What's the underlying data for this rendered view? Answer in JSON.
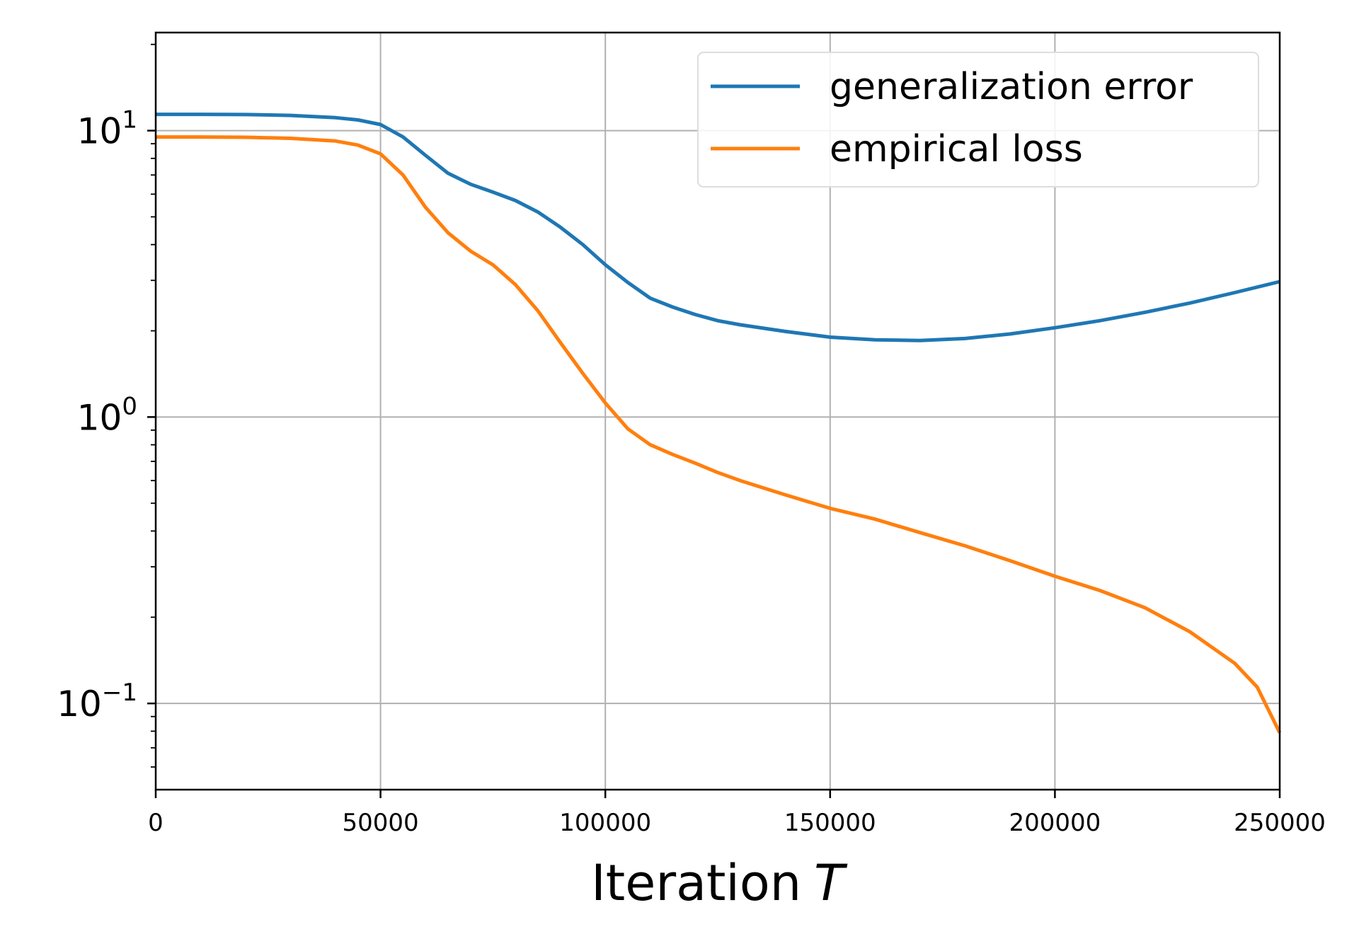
{
  "chart_data": {
    "type": "line",
    "xlabel": "Iteration",
    "xlabel_symbol": "T",
    "ylabel": "",
    "title": "",
    "y_scale": "log",
    "xlim": [
      0,
      250000
    ],
    "ylim": [
      0.05,
      22
    ],
    "grid": true,
    "legend_position": "top-right",
    "x_ticks": [
      {
        "value": 0,
        "label": "0"
      },
      {
        "value": 50000,
        "label": "50000"
      },
      {
        "value": 100000,
        "label": "100000"
      },
      {
        "value": 150000,
        "label": "150000"
      },
      {
        "value": 200000,
        "label": "200000"
      },
      {
        "value": 250000,
        "label": "250000"
      }
    ],
    "y_ticks": [
      {
        "value": 10,
        "base": "10",
        "exponent": "1"
      },
      {
        "value": 1,
        "base": "10",
        "exponent": "0"
      },
      {
        "value": 0.1,
        "base": "10",
        "exponent": "−1"
      }
    ],
    "series": [
      {
        "name": "generalization error",
        "color": "#1f77b4",
        "x": [
          0,
          10000,
          20000,
          30000,
          40000,
          45000,
          50000,
          55000,
          60000,
          65000,
          70000,
          75000,
          80000,
          85000,
          90000,
          95000,
          100000,
          105000,
          110000,
          115000,
          120000,
          125000,
          130000,
          140000,
          150000,
          160000,
          170000,
          180000,
          190000,
          200000,
          210000,
          220000,
          230000,
          240000,
          250000
        ],
        "y": [
          11.4,
          11.4,
          11.38,
          11.3,
          11.1,
          10.9,
          10.5,
          9.5,
          8.2,
          7.1,
          6.5,
          6.1,
          5.7,
          5.2,
          4.6,
          4.0,
          3.4,
          2.95,
          2.6,
          2.42,
          2.28,
          2.17,
          2.1,
          1.99,
          1.9,
          1.86,
          1.85,
          1.88,
          1.95,
          2.05,
          2.17,
          2.32,
          2.5,
          2.72,
          2.97
        ]
      },
      {
        "name": "empirical loss",
        "color": "#ff7f0e",
        "x": [
          0,
          10000,
          20000,
          30000,
          40000,
          45000,
          50000,
          55000,
          60000,
          65000,
          70000,
          75000,
          80000,
          85000,
          90000,
          95000,
          100000,
          105000,
          110000,
          115000,
          120000,
          125000,
          130000,
          140000,
          150000,
          160000,
          170000,
          180000,
          190000,
          200000,
          210000,
          220000,
          230000,
          240000,
          245000,
          250000
        ],
        "y": [
          9.5,
          9.5,
          9.48,
          9.4,
          9.2,
          8.9,
          8.3,
          7.0,
          5.4,
          4.4,
          3.8,
          3.4,
          2.9,
          2.35,
          1.82,
          1.42,
          1.12,
          0.91,
          0.8,
          0.74,
          0.69,
          0.64,
          0.6,
          0.535,
          0.48,
          0.44,
          0.395,
          0.355,
          0.315,
          0.278,
          0.248,
          0.216,
          0.178,
          0.138,
          0.114,
          0.079
        ]
      }
    ]
  }
}
